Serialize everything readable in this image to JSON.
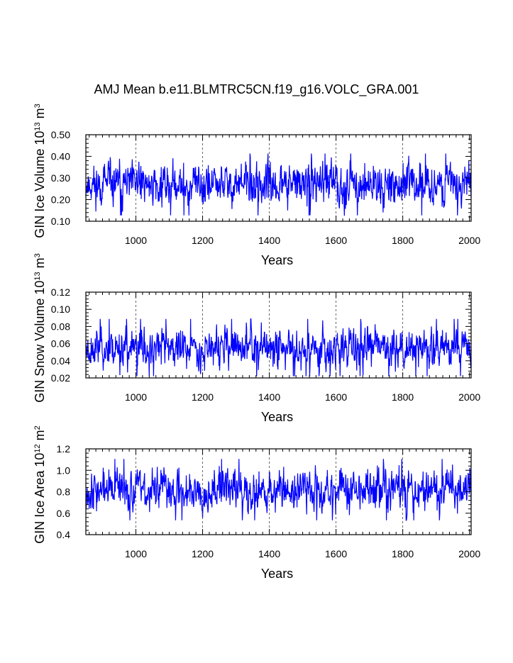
{
  "figure": {
    "title": "AMJ Mean b.e11.BLMTRC5CN.f19_g16.VOLC_GRA.001"
  },
  "chart_data": [
    {
      "type": "line",
      "id": "ice-volume",
      "xlabel": "Years",
      "ylabel_main": "GIN Ice Volume 10",
      "ylabel_exp": "13",
      "ylabel_unit": " m",
      "ylabel_unit_exp": "3",
      "xlim": [
        850,
        2005
      ],
      "ylim": [
        0.1,
        0.5
      ],
      "xticks": [
        1000,
        1200,
        1400,
        1600,
        1800,
        2000
      ],
      "yticks": [
        0.1,
        0.2,
        0.3,
        0.4,
        0.5
      ],
      "ytick_labels": [
        "0.10",
        "0.20",
        "0.30",
        "0.40",
        "0.50"
      ],
      "series": [
        {
          "color": "#0000ff",
          "base": 0.27,
          "amp": 0.055,
          "min": 0.12,
          "max": 0.46,
          "seed": 11
        }
      ],
      "dashed_verticals": [
        1000,
        1200,
        1400,
        1600,
        1800
      ]
    },
    {
      "type": "line",
      "id": "snow-volume",
      "xlabel": "Years",
      "ylabel_main": "GIN Snow Volume 10",
      "ylabel_exp": "13",
      "ylabel_unit": " m",
      "ylabel_unit_exp": "3",
      "xlim": [
        850,
        2005
      ],
      "ylim": [
        0.02,
        0.12
      ],
      "xticks": [
        1000,
        1200,
        1400,
        1600,
        1800,
        2000
      ],
      "yticks": [
        0.02,
        0.04,
        0.06,
        0.08,
        0.1,
        0.12
      ],
      "ytick_labels": [
        "0.02",
        "0.04",
        "0.06",
        "0.08",
        "0.10",
        "0.12"
      ],
      "series": [
        {
          "color": "#0000ff",
          "base": 0.055,
          "amp": 0.013,
          "min": 0.022,
          "max": 0.101,
          "seed": 23
        }
      ],
      "dashed_verticals": [
        1000,
        1200,
        1400,
        1600,
        1800
      ]
    },
    {
      "type": "line",
      "id": "ice-area",
      "xlabel": "Years",
      "ylabel_main": "GIN Ice Area 10",
      "ylabel_exp": "12",
      "ylabel_unit": " m",
      "ylabel_unit_exp": "2",
      "xlim": [
        850,
        2005
      ],
      "ylim": [
        0.4,
        1.2
      ],
      "xticks": [
        1000,
        1200,
        1400,
        1600,
        1800,
        2000
      ],
      "yticks": [
        0.4,
        0.6,
        0.8,
        1.0,
        1.2
      ],
      "ytick_labels": [
        "0.4",
        "0.6",
        "0.8",
        "1.0",
        "1.2"
      ],
      "series": [
        {
          "color": "#0000ff",
          "base": 0.82,
          "amp": 0.11,
          "min": 0.47,
          "max": 1.19,
          "seed": 37
        }
      ],
      "dashed_verticals": [
        1000,
        1200,
        1400,
        1600,
        1800
      ]
    }
  ]
}
